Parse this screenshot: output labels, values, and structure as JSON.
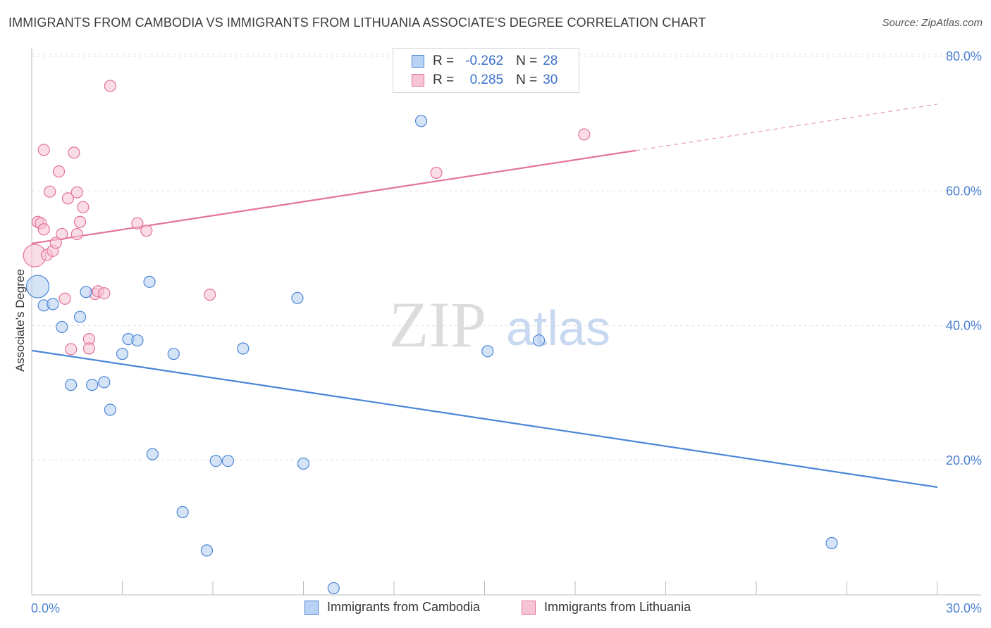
{
  "title": "IMMIGRANTS FROM CAMBODIA VS IMMIGRANTS FROM LITHUANIA ASSOCIATE'S DEGREE CORRELATION CHART",
  "source": "Source: ZipAtlas.com",
  "watermark": {
    "zip": "ZIP",
    "atlas": "atlas"
  },
  "legend": {
    "rows": [
      {
        "r_label": "R =",
        "r_value": "-0.262",
        "n_label": "N =",
        "n_value": "28"
      },
      {
        "r_label": "R =",
        "r_value": "0.285",
        "n_label": "N =",
        "n_value": "30"
      }
    ]
  },
  "colors": {
    "cambodia": "#4a86d8",
    "cambodia_fill": "#b9d1f2",
    "lithuania": "#e3739a",
    "lithuania_fill": "#f6c4d5",
    "tick_label": "#4a7fd1"
  },
  "chart_data": {
    "type": "scatter",
    "title": "IMMIGRANTS FROM CAMBODIA VS IMMIGRANTS FROM LITHUANIA ASSOCIATE'S DEGREE CORRELATION CHART",
    "xlabel": "",
    "ylabel": "Associate's Degree",
    "xlim": [
      0,
      30
    ],
    "ylim": [
      0,
      80
    ],
    "x_tick_labels": [
      "0.0%",
      "30.0%"
    ],
    "y_tick_labels": [
      "20.0%",
      "40.0%",
      "60.0%",
      "80.0%"
    ],
    "y_tick_values": [
      20,
      40,
      60,
      80
    ],
    "grid": true,
    "series": [
      {
        "name": "Immigrants from Cambodia",
        "r": -0.262,
        "n": 28,
        "trend": {
          "x": [
            0,
            30
          ],
          "y": [
            36.3,
            16.0
          ]
        },
        "points": [
          {
            "x": 0.2,
            "y": 45.8,
            "big": true
          },
          {
            "x": 0.4,
            "y": 43.0
          },
          {
            "x": 0.7,
            "y": 43.2
          },
          {
            "x": 1.0,
            "y": 39.8
          },
          {
            "x": 1.3,
            "y": 31.2
          },
          {
            "x": 1.6,
            "y": 41.3
          },
          {
            "x": 1.8,
            "y": 45.0
          },
          {
            "x": 2.0,
            "y": 31.2
          },
          {
            "x": 2.4,
            "y": 31.6
          },
          {
            "x": 2.6,
            "y": 27.5
          },
          {
            "x": 3.0,
            "y": 35.8
          },
          {
            "x": 3.2,
            "y": 38.0
          },
          {
            "x": 3.5,
            "y": 37.8
          },
          {
            "x": 3.9,
            "y": 46.5
          },
          {
            "x": 4.0,
            "y": 20.9
          },
          {
            "x": 4.7,
            "y": 35.8
          },
          {
            "x": 5.0,
            "y": 12.3
          },
          {
            "x": 5.8,
            "y": 6.6
          },
          {
            "x": 6.1,
            "y": 19.9
          },
          {
            "x": 6.5,
            "y": 19.9
          },
          {
            "x": 7.0,
            "y": 36.6
          },
          {
            "x": 8.8,
            "y": 44.1
          },
          {
            "x": 9.0,
            "y": 19.5
          },
          {
            "x": 10.0,
            "y": 1.0
          },
          {
            "x": 12.9,
            "y": 70.4
          },
          {
            "x": 15.1,
            "y": 36.2
          },
          {
            "x": 16.8,
            "y": 37.8
          },
          {
            "x": 26.5,
            "y": 7.7
          }
        ]
      },
      {
        "name": "Immigrants from Lithuania",
        "r": 0.285,
        "n": 30,
        "trend": {
          "x": [
            0,
            20.0
          ],
          "y": [
            52.2,
            66.0
          ],
          "dashed_to": {
            "x": 30,
            "y": 72.9
          }
        },
        "points": [
          {
            "x": 0.1,
            "y": 50.4,
            "big": true
          },
          {
            "x": 0.2,
            "y": 55.4
          },
          {
            "x": 0.3,
            "y": 55.2
          },
          {
            "x": 0.4,
            "y": 54.3
          },
          {
            "x": 0.4,
            "y": 66.1
          },
          {
            "x": 0.5,
            "y": 50.5
          },
          {
            "x": 0.6,
            "y": 59.9
          },
          {
            "x": 0.7,
            "y": 51.1
          },
          {
            "x": 0.8,
            "y": 52.3
          },
          {
            "x": 0.9,
            "y": 62.9
          },
          {
            "x": 1.0,
            "y": 53.6
          },
          {
            "x": 1.1,
            "y": 44.0
          },
          {
            "x": 1.2,
            "y": 58.9
          },
          {
            "x": 1.3,
            "y": 36.5
          },
          {
            "x": 1.4,
            "y": 65.7
          },
          {
            "x": 1.5,
            "y": 59.8
          },
          {
            "x": 1.5,
            "y": 53.6
          },
          {
            "x": 1.6,
            "y": 55.4
          },
          {
            "x": 1.7,
            "y": 57.6
          },
          {
            "x": 1.9,
            "y": 38.0
          },
          {
            "x": 1.9,
            "y": 36.6
          },
          {
            "x": 2.1,
            "y": 44.7
          },
          {
            "x": 2.2,
            "y": 45.1
          },
          {
            "x": 2.4,
            "y": 44.8
          },
          {
            "x": 2.6,
            "y": 75.6
          },
          {
            "x": 3.5,
            "y": 55.2
          },
          {
            "x": 3.8,
            "y": 54.1
          },
          {
            "x": 5.9,
            "y": 44.6
          },
          {
            "x": 13.4,
            "y": 62.7
          },
          {
            "x": 18.3,
            "y": 68.4
          }
        ]
      }
    ]
  }
}
